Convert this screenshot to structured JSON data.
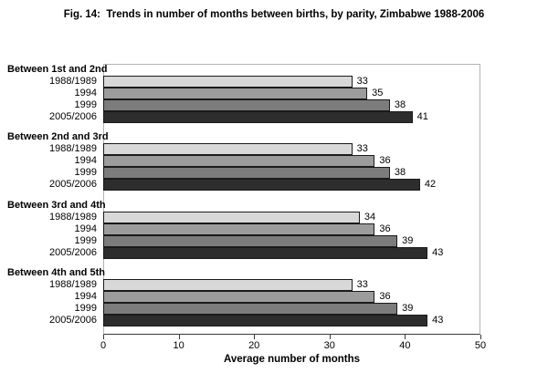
{
  "title": "Fig. 14:  Trends in number of months between births, by parity, Zimbabwe 1988-2006",
  "chart_data": {
    "type": "bar",
    "orientation": "horizontal",
    "title": "Fig. 14:  Trends in number of months between births, by parity, Zimbabwe 1988-2006",
    "group_labels": [
      "Between 1st and 2nd",
      "Between 2nd and 3rd",
      "Between 3rd and 4th",
      "Between 4th and 5th"
    ],
    "categories": [
      "1988/1989",
      "1994",
      "1999",
      "2005/2006"
    ],
    "series": [
      {
        "name": "1988/1989",
        "color": "#d8d8d8",
        "values": [
          33,
          33,
          34,
          33
        ]
      },
      {
        "name": "1994",
        "color": "#9c9c9c",
        "values": [
          35,
          36,
          36,
          36
        ]
      },
      {
        "name": "1999",
        "color": "#7c7c7c",
        "values": [
          38,
          38,
          39,
          39
        ]
      },
      {
        "name": "2005/2006",
        "color": "#2d2d2d",
        "values": [
          41,
          42,
          43,
          43
        ]
      }
    ],
    "value_labels_shown": true,
    "xlabel": "Average number of months",
    "xlim": [
      0,
      50
    ],
    "xticks": [
      0,
      10,
      20,
      30,
      40,
      50
    ],
    "grid": "off",
    "legend": "none",
    "bar_border_color": "#1a1a1a",
    "plot_border_color": "#b3b3b3",
    "axis_color": "#3a3a3a"
  }
}
